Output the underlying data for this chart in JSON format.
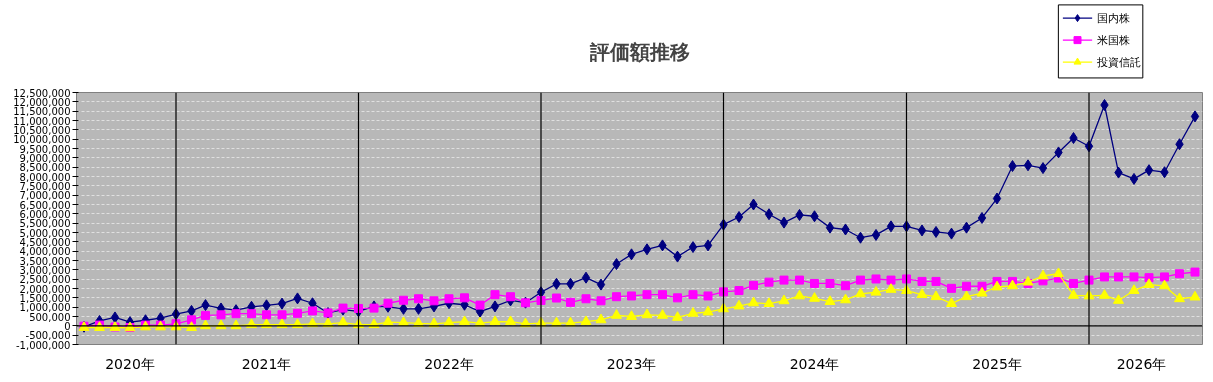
{
  "chart_data": {
    "type": "line",
    "title": "評価額推移",
    "x": [
      "2020-07",
      "2020-08",
      "2020-09",
      "2020-10",
      "2020-11",
      "2020-12",
      "2021-01",
      "2021-02",
      "2021-03",
      "2021-04",
      "2021-05",
      "2021-06",
      "2021-07",
      "2021-08",
      "2021-09",
      "2021-10",
      "2021-11",
      "2021-12",
      "2022-01",
      "2022-02",
      "2022-03",
      "2022-04",
      "2022-05",
      "2022-06",
      "2022-07",
      "2022-08",
      "2022-09",
      "2022-10",
      "2022-11",
      "2022-12",
      "2023-01",
      "2023-02",
      "2023-03",
      "2023-04",
      "2023-05",
      "2023-06",
      "2023-07",
      "2023-08",
      "2023-09",
      "2023-10",
      "2023-11",
      "2023-12",
      "2024-01",
      "2024-02",
      "2024-03",
      "2024-04",
      "2024-05",
      "2024-06",
      "2024-07",
      "2024-08",
      "2024-09",
      "2024-10",
      "2024-11",
      "2024-12",
      "2025-01",
      "2025-02",
      "2025-03",
      "2025-04",
      "2025-05",
      "2025-06",
      "2025-07",
      "2025-08",
      "2025-09",
      "2025-10",
      "2025-11",
      "2025-12",
      "2026-01",
      "2026-02",
      "2026-03",
      "2026-04",
      "2026-05",
      "2026-06",
      "2026-07",
      "2026-08"
    ],
    "series": [
      {
        "name": "国内株",
        "color": "#000080",
        "marker": "diamond",
        "values": [
          -50000,
          260000,
          450000,
          200000,
          300000,
          410000,
          630000,
          800000,
          1110000,
          930000,
          840000,
          1020000,
          1100000,
          1190000,
          1470000,
          1210000,
          690000,
          870000,
          780000,
          1040000,
          1020000,
          910000,
          910000,
          1040000,
          1210000,
          1130000,
          760000,
          1040000,
          1360000,
          1240000,
          1800000,
          2250000,
          2250000,
          2580000,
          2210000,
          3310000,
          3830000,
          4100000,
          4310000,
          3710000,
          4220000,
          4310000,
          5420000,
          5830000,
          6500000,
          5980000,
          5530000,
          5940000,
          5870000,
          5260000,
          5160000,
          4720000,
          4870000,
          5330000,
          5330000,
          5110000,
          5030000,
          4940000,
          5260000,
          5780000,
          6820000,
          8560000,
          8600000,
          8450000,
          9290000,
          10060000,
          9620000,
          11830000,
          8210000,
          7870000,
          8340000,
          8230000,
          9730000,
          11220000
        ]
      },
      {
        "name": "米国株",
        "color": "#ff00ff",
        "marker": "square",
        "values": [
          -20000,
          40000,
          -60000,
          -90000,
          40000,
          40000,
          110000,
          320000,
          560000,
          590000,
          650000,
          650000,
          590000,
          590000,
          670000,
          800000,
          690000,
          950000,
          930000,
          950000,
          1210000,
          1370000,
          1450000,
          1340000,
          1450000,
          1500000,
          1110000,
          1670000,
          1560000,
          1230000,
          1360000,
          1490000,
          1260000,
          1450000,
          1340000,
          1560000,
          1600000,
          1670000,
          1670000,
          1500000,
          1670000,
          1600000,
          1820000,
          1890000,
          2170000,
          2340000,
          2450000,
          2450000,
          2270000,
          2270000,
          2150000,
          2450000,
          2510000,
          2450000,
          2510000,
          2380000,
          2380000,
          2010000,
          2120000,
          2120000,
          2380000,
          2380000,
          2270000,
          2410000,
          2560000,
          2270000,
          2450000,
          2620000,
          2620000,
          2620000,
          2580000,
          2620000,
          2790000,
          2880000
        ]
      },
      {
        "name": "投資信託",
        "color": "#ffff00",
        "marker": "triangle",
        "values": [
          -90000,
          -90000,
          -90000,
          -110000,
          -60000,
          -60000,
          -60000,
          -90000,
          0,
          0,
          0,
          60000,
          60000,
          60000,
          60000,
          110000,
          110000,
          170000,
          60000,
          60000,
          200000,
          170000,
          130000,
          110000,
          170000,
          220000,
          150000,
          220000,
          220000,
          110000,
          150000,
          150000,
          150000,
          220000,
          320000,
          560000,
          500000,
          590000,
          560000,
          450000,
          670000,
          740000,
          910000,
          1060000,
          1230000,
          1190000,
          1340000,
          1600000,
          1470000,
          1300000,
          1390000,
          1710000,
          1800000,
          1950000,
          1890000,
          1670000,
          1560000,
          1190000,
          1560000,
          1750000,
          2080000,
          2140000,
          2340000,
          2670000,
          2790000,
          1630000,
          1600000,
          1630000,
          1360000,
          1890000,
          2210000,
          2140000,
          1450000,
          1540000
        ]
      }
    ],
    "xlim": [
      "2020-06-16",
      "2026-08-16"
    ],
    "xticks": [
      {
        "value": "2020-10-01",
        "label": "2020年"
      },
      {
        "value": "2021-07-01",
        "label": "2021年"
      },
      {
        "value": "2022-07-01",
        "label": "2022年"
      },
      {
        "value": "2023-07-01",
        "label": "2023年"
      },
      {
        "value": "2024-07-01",
        "label": "2024年"
      },
      {
        "value": "2025-07-01",
        "label": "2025年"
      },
      {
        "value": "2026-04-16",
        "label": "2026年"
      }
    ],
    "ylim": [
      -1000000,
      12500000
    ],
    "yticks": [
      {
        "value": -1000000,
        "label": "-1,000,000"
      },
      {
        "value": -500000,
        "label": "-500,000"
      },
      0,
      {
        "value": 500000,
        "label": "500,000"
      },
      {
        "value": 1000000,
        "label": "1,000,000"
      },
      {
        "value": 1500000,
        "label": "1,500,000"
      },
      {
        "value": 2000000,
        "label": "2,000,000"
      },
      {
        "value": 2500000,
        "label": "2,500,000"
      },
      {
        "value": 3000000,
        "label": "3,000,000"
      },
      {
        "value": 3500000,
        "label": "3,500,000"
      },
      {
        "value": 4000000,
        "label": "4,000,000"
      },
      {
        "value": 4500000,
        "label": "4,500,000"
      },
      {
        "value": 5000000,
        "label": "5,000,000"
      },
      {
        "value": 5500000,
        "label": "5,500,000"
      },
      {
        "value": 6000000,
        "label": "6,000,000"
      },
      {
        "value": 6500000,
        "label": "6,500,000"
      },
      {
        "value": 7000000,
        "label": "7,000,000"
      },
      {
        "value": 7500000,
        "label": "7,500,000"
      },
      {
        "value": 8000000,
        "label": "8,000,000"
      },
      {
        "value": 8500000,
        "label": "8,500,000"
      },
      {
        "value": 9000000,
        "label": "9,000,000"
      },
      {
        "value": 9500000,
        "label": "9,500,000"
      },
      {
        "value": 10000000,
        "label": "10,000,000"
      },
      {
        "value": 10500000,
        "label": "10,500,000"
      },
      {
        "value": 11000000,
        "label": "11,000,000"
      },
      {
        "value": 11500000,
        "label": "11,500,000"
      },
      {
        "value": 12000000,
        "label": "12,000,000"
      },
      {
        "value": 12500000,
        "label": "12,500,000"
      }
    ],
    "ref_lines": [
      {
        "axis": "x",
        "value": "2021-01-01",
        "color": "#000000"
      },
      {
        "axis": "x",
        "value": "2022-01-01",
        "color": "#000000"
      },
      {
        "axis": "x",
        "value": "2023-01-01",
        "color": "#000000"
      },
      {
        "axis": "x",
        "value": "2024-01-01",
        "color": "#000000"
      },
      {
        "axis": "x",
        "value": "2025-01-01",
        "color": "#000000"
      },
      {
        "axis": "x",
        "value": "2026-01-01",
        "color": "#000000"
      },
      {
        "axis": "y",
        "value": 0,
        "color": "#000000"
      }
    ],
    "grid": "y",
    "legend": "top right",
    "line_style": "solid"
  }
}
